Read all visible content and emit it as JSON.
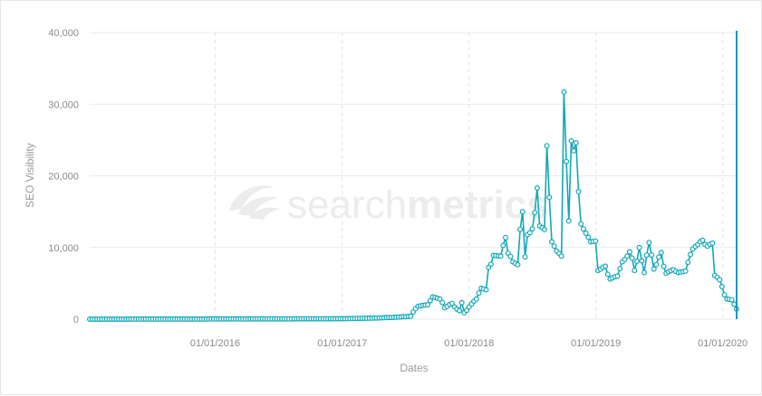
{
  "brand": {
    "watermark_light": "search",
    "watermark_bold": "metrics",
    "logo_icon": "searchmetrics-swoosh-icon"
  },
  "colors": {
    "series": "#12a8b8",
    "cursor": "#1597c7",
    "grid": "#e9e9e9"
  },
  "chart_data": {
    "type": "line",
    "xlabel": "Dates",
    "ylabel": "SEO Visibility",
    "ylim": [
      0,
      40000
    ],
    "y_ticks": [
      0,
      10000,
      20000,
      30000,
      40000
    ],
    "y_tick_labels": [
      "0",
      "10,000",
      "20,000",
      "30,000",
      "40,000"
    ],
    "x_ticks": [
      "2016-01-01",
      "2017-01-01",
      "2018-01-01",
      "2019-01-01",
      "2020-01-01"
    ],
    "x_tick_labels": [
      "01/01/2016",
      "01/01/2017",
      "01/01/2018",
      "01/01/2019",
      "01/01/2020"
    ],
    "xlim": [
      "2015-01-05",
      "2020-02-10"
    ],
    "grid": "horizontal solid, vertical dashed",
    "legend": "none",
    "cursor_date": "2020-02-10",
    "keypoints": [
      [
        "2015-01-05",
        0
      ],
      [
        "2016-01-01",
        20
      ],
      [
        "2017-01-01",
        60
      ],
      [
        "2017-04-01",
        150
      ],
      [
        "2017-06-01",
        250
      ],
      [
        "2017-07-15",
        400
      ],
      [
        "2017-08-05",
        1800
      ],
      [
        "2017-09-01",
        2000
      ],
      [
        "2017-09-20",
        3100
      ],
      [
        "2017-10-10",
        2800
      ],
      [
        "2017-10-25",
        1600
      ],
      [
        "2017-11-10",
        2200
      ],
      [
        "2017-12-01",
        1200
      ],
      [
        "2017-12-10",
        2300
      ],
      [
        "2017-12-20",
        900
      ],
      [
        "2018-01-01",
        1700
      ],
      [
        "2018-01-20",
        2800
      ],
      [
        "2018-02-05",
        4300
      ],
      [
        "2018-02-20",
        4100
      ],
      [
        "2018-03-01",
        7200
      ],
      [
        "2018-03-15",
        8900
      ],
      [
        "2018-04-01",
        8800
      ],
      [
        "2018-04-15",
        11400
      ],
      [
        "2018-04-25",
        9200
      ],
      [
        "2018-05-08",
        8000
      ],
      [
        "2018-05-20",
        7600
      ],
      [
        "2018-06-01",
        15000
      ],
      [
        "2018-06-08",
        8700
      ],
      [
        "2018-06-20",
        11800
      ],
      [
        "2018-07-05",
        12600
      ],
      [
        "2018-07-15",
        18300
      ],
      [
        "2018-07-25",
        13000
      ],
      [
        "2018-08-05",
        12500
      ],
      [
        "2018-08-12",
        24200
      ],
      [
        "2018-08-20",
        17000
      ],
      [
        "2018-08-28",
        10800
      ],
      [
        "2018-09-10",
        9500
      ],
      [
        "2018-09-25",
        8800
      ],
      [
        "2018-10-01",
        31700
      ],
      [
        "2018-10-08",
        22000
      ],
      [
        "2018-10-15",
        13700
      ],
      [
        "2018-10-22",
        24900
      ],
      [
        "2018-10-28",
        23500
      ],
      [
        "2018-11-05",
        24600
      ],
      [
        "2018-11-12",
        17800
      ],
      [
        "2018-11-20",
        13300
      ],
      [
        "2018-12-01",
        12000
      ],
      [
        "2018-12-20",
        10800
      ],
      [
        "2019-01-01",
        10900
      ],
      [
        "2019-01-10",
        6800
      ],
      [
        "2019-01-25",
        7400
      ],
      [
        "2019-02-10",
        5600
      ],
      [
        "2019-03-01",
        6000
      ],
      [
        "2019-03-20",
        8000
      ],
      [
        "2019-04-10",
        9400
      ],
      [
        "2019-04-25",
        6800
      ],
      [
        "2019-05-05",
        10000
      ],
      [
        "2019-05-20",
        6500
      ],
      [
        "2019-06-01",
        10700
      ],
      [
        "2019-06-20",
        7000
      ],
      [
        "2019-07-05",
        9300
      ],
      [
        "2019-07-20",
        6400
      ],
      [
        "2019-08-10",
        6900
      ],
      [
        "2019-08-25",
        6500
      ],
      [
        "2019-09-15",
        6700
      ],
      [
        "2019-10-05",
        9800
      ],
      [
        "2019-10-20",
        10400
      ],
      [
        "2019-11-01",
        11000
      ],
      [
        "2019-11-15",
        10200
      ],
      [
        "2019-12-01",
        10600
      ],
      [
        "2019-12-10",
        6100
      ],
      [
        "2019-12-25",
        5500
      ],
      [
        "2020-01-05",
        3400
      ],
      [
        "2020-01-15",
        2800
      ],
      [
        "2020-01-28",
        2700
      ],
      [
        "2020-02-10",
        1400
      ]
    ]
  }
}
